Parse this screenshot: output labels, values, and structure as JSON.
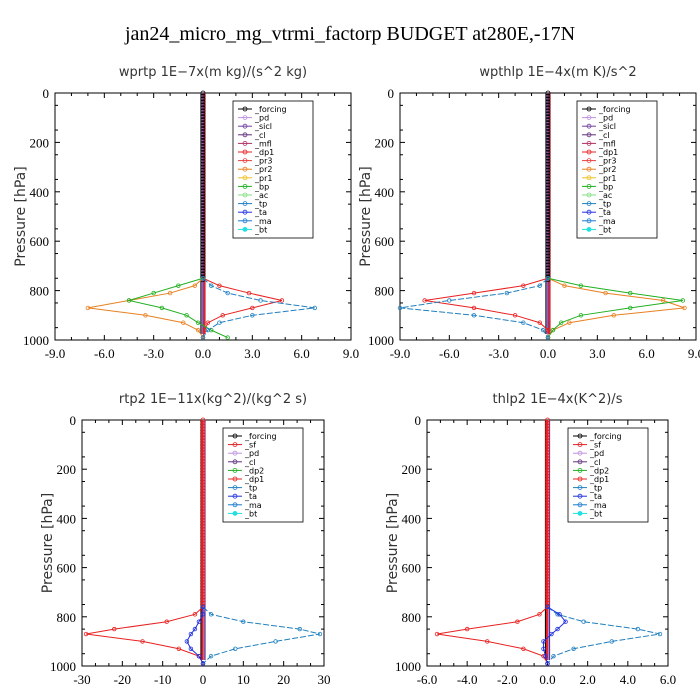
{
  "title": "jan24_micro_mg_vtrmi_factorp  BUDGET at280E,-17N",
  "colors": {
    "_forcing": "#000000",
    "_pd": "#c090e0",
    "_sicl": "#7040a0",
    "_cl": "#603080",
    "_mfl": "#b03060",
    "_dp1": "#e82020",
    "_dp2": "#20b020",
    "_pr3": "#e84040",
    "_pr2": "#e88020",
    "_pr1": "#f0c020",
    "_bp": "#20b020",
    "_ac": "#80e080",
    "_tp": "#2080c0",
    "_ta": "#2030e0",
    "_ma": "#1a7ad0",
    "_bt": "#20e0e0",
    "_sf": "#e02020"
  },
  "chart_data": [
    {
      "type": "line",
      "title": "wprtp   1E−7x(m kg)/(s^2 kg)",
      "ylabel": "Pressure  [hPa]",
      "xlim": [
        -9,
        9
      ],
      "ylim": [
        1000,
        0
      ],
      "xticks": [
        -9,
        -6,
        -3,
        0,
        3,
        6,
        9
      ],
      "xtick_labels": [
        "-9.0",
        "-6.0",
        "-3.0",
        "0.0",
        "3.0",
        "6.0",
        "9.0"
      ],
      "yticks": [
        0,
        200,
        400,
        600,
        800,
        1000
      ],
      "ytick_labels": [
        "0",
        "200",
        "400",
        "600",
        "800",
        "1000"
      ],
      "legend": [
        "_forcing",
        "_pd",
        "_sicl",
        "_cl",
        "_mfl",
        "_dp1",
        "_pr3",
        "_pr2",
        "_pr1",
        "_bp",
        "_ac",
        "_tp",
        "_ta",
        "_ma",
        "_bt"
      ],
      "series": [
        {
          "name": "_dp1",
          "y": [
            750,
            780,
            810,
            840,
            870,
            900,
            930,
            960,
            990
          ],
          "x": [
            0,
            1.0,
            2.8,
            4.8,
            3.0,
            1.2,
            0.3,
            0.1,
            0
          ]
        },
        {
          "name": "_pr2",
          "y": [
            750,
            780,
            810,
            840,
            870,
            900,
            930,
            960,
            990
          ],
          "x": [
            0,
            -0.5,
            -2.0,
            -4.5,
            -7.0,
            -3.5,
            -1.2,
            -0.3,
            0
          ]
        },
        {
          "name": "_bp",
          "y": [
            750,
            780,
            810,
            840,
            870,
            900,
            930,
            960,
            990
          ],
          "x": [
            0,
            -1.5,
            -3.0,
            -4.5,
            -2.5,
            -1.0,
            -0.3,
            0.5,
            1.5
          ]
        },
        {
          "name": "_tp",
          "y": [
            750,
            780,
            810,
            840,
            870,
            900,
            930,
            960,
            990
          ],
          "x": [
            0,
            0.5,
            1.5,
            3.5,
            6.8,
            3.0,
            1.0,
            0.3,
            0
          ]
        }
      ]
    },
    {
      "type": "line",
      "title": "wpthlp   1E−4x(m K)/s^2",
      "ylabel": "Pressure  [hPa]",
      "xlim": [
        -9,
        9
      ],
      "ylim": [
        1000,
        0
      ],
      "xticks": [
        -9,
        -6,
        -3,
        0,
        3,
        6,
        9
      ],
      "xtick_labels": [
        "-9.0",
        "-6.0",
        "-3.0",
        "0.0",
        "3.0",
        "6.0",
        "9.0"
      ],
      "yticks": [
        0,
        200,
        400,
        600,
        800,
        1000
      ],
      "ytick_labels": [
        "0",
        "200",
        "400",
        "600",
        "800",
        "1000"
      ],
      "legend": [
        "_forcing",
        "_pd",
        "_sicl",
        "_cl",
        "_mfl",
        "_dp1",
        "_pr3",
        "_pr2",
        "_pr1",
        "_bp",
        "_ac",
        "_tp",
        "_ta",
        "_ma",
        "_bt"
      ],
      "series": [
        {
          "name": "_dp1",
          "y": [
            750,
            780,
            810,
            840,
            870,
            900,
            930,
            960,
            990
          ],
          "x": [
            0,
            -1.5,
            -4.5,
            -7.5,
            -4.5,
            -2.0,
            -0.5,
            0,
            0
          ]
        },
        {
          "name": "_pr2",
          "y": [
            750,
            780,
            810,
            840,
            870,
            900,
            930,
            960,
            990
          ],
          "x": [
            0,
            1.0,
            3.5,
            7.0,
            8.3,
            4.0,
            1.3,
            0.3,
            0
          ]
        },
        {
          "name": "_bp",
          "y": [
            750,
            780,
            810,
            840,
            870,
            900,
            930,
            960,
            990
          ],
          "x": [
            0,
            2.0,
            5.0,
            8.2,
            5.0,
            2.0,
            0.8,
            0.3,
            0
          ]
        },
        {
          "name": "_tp",
          "y": [
            750,
            780,
            810,
            840,
            870,
            900,
            930,
            960,
            990
          ],
          "x": [
            0,
            -0.5,
            -2.5,
            -6.0,
            -9.0,
            -4.5,
            -1.5,
            -0.3,
            0
          ]
        }
      ]
    },
    {
      "type": "line",
      "title": "rtp2   1E−11x(kg^2)/(kg^2 s)",
      "ylabel": "Pressure  [hPa]",
      "xlim": [
        -30,
        30
      ],
      "ylim": [
        1000,
        0
      ],
      "xticks": [
        -30,
        -20,
        -10,
        0,
        10,
        20,
        30
      ],
      "xtick_labels": [
        "-30",
        "-20",
        "-10",
        "0",
        "10",
        "20",
        "30"
      ],
      "yticks": [
        0,
        200,
        400,
        600,
        800,
        1000
      ],
      "ytick_labels": [
        "0",
        "200",
        "400",
        "600",
        "800",
        "1000"
      ],
      "legend": [
        "_forcing",
        "_sf",
        "_pd",
        "_cl",
        "_dp2",
        "_dp1",
        "_tp",
        "_ta",
        "_ma",
        "_bt"
      ],
      "series": [
        {
          "name": "_dp1",
          "y": [
            760,
            790,
            820,
            850,
            870,
            900,
            930,
            960,
            990
          ],
          "x": [
            0,
            -2,
            -9,
            -22,
            -29,
            -15,
            -6,
            -1,
            0
          ]
        },
        {
          "name": "_tp",
          "y": [
            760,
            790,
            820,
            850,
            870,
            900,
            930,
            960,
            990
          ],
          "x": [
            0,
            2,
            10,
            24,
            29,
            18,
            8,
            2,
            0
          ]
        },
        {
          "name": "_ta",
          "y": [
            760,
            790,
            820,
            850,
            870,
            900,
            930,
            960,
            990
          ],
          "x": [
            0,
            0,
            -1,
            -2,
            -3,
            -4,
            -3,
            -1,
            0
          ]
        }
      ]
    },
    {
      "type": "line",
      "title": "thlp2   1E−4x(K^2)/s",
      "ylabel": "Pressure  [hPa]",
      "xlim": [
        -6,
        6
      ],
      "ylim": [
        1000,
        0
      ],
      "xticks": [
        -6,
        -4,
        -2,
        0,
        2,
        4,
        6
      ],
      "xtick_labels": [
        "-6.0",
        "-4.0",
        "-2.0",
        "0.0",
        "2.0",
        "4.0",
        "6.0"
      ],
      "yticks": [
        0,
        200,
        400,
        600,
        800,
        1000
      ],
      "ytick_labels": [
        "0",
        "200",
        "400",
        "600",
        "800",
        "1000"
      ],
      "legend": [
        "_forcing",
        "_sf",
        "_pd",
        "_cl",
        "_dp2",
        "_dp1",
        "_tp",
        "_ta",
        "_ma",
        "_bt"
      ],
      "series": [
        {
          "name": "_dp1",
          "y": [
            760,
            790,
            820,
            850,
            870,
            900,
            930,
            960,
            990
          ],
          "x": [
            0,
            -0.4,
            -1.5,
            -4.0,
            -5.5,
            -3.0,
            -1.2,
            -0.2,
            0
          ]
        },
        {
          "name": "_tp",
          "y": [
            760,
            790,
            820,
            850,
            870,
            900,
            930,
            960,
            990
          ],
          "x": [
            0,
            0.5,
            1.8,
            4.5,
            5.6,
            3.2,
            1.3,
            0.3,
            0
          ]
        },
        {
          "name": "_ta",
          "y": [
            760,
            790,
            820,
            850,
            870,
            900,
            930,
            960,
            990
          ],
          "x": [
            0,
            0.6,
            0.9,
            0.5,
            0.2,
            -0.2,
            -0.2,
            -0.1,
            0
          ]
        }
      ]
    }
  ]
}
